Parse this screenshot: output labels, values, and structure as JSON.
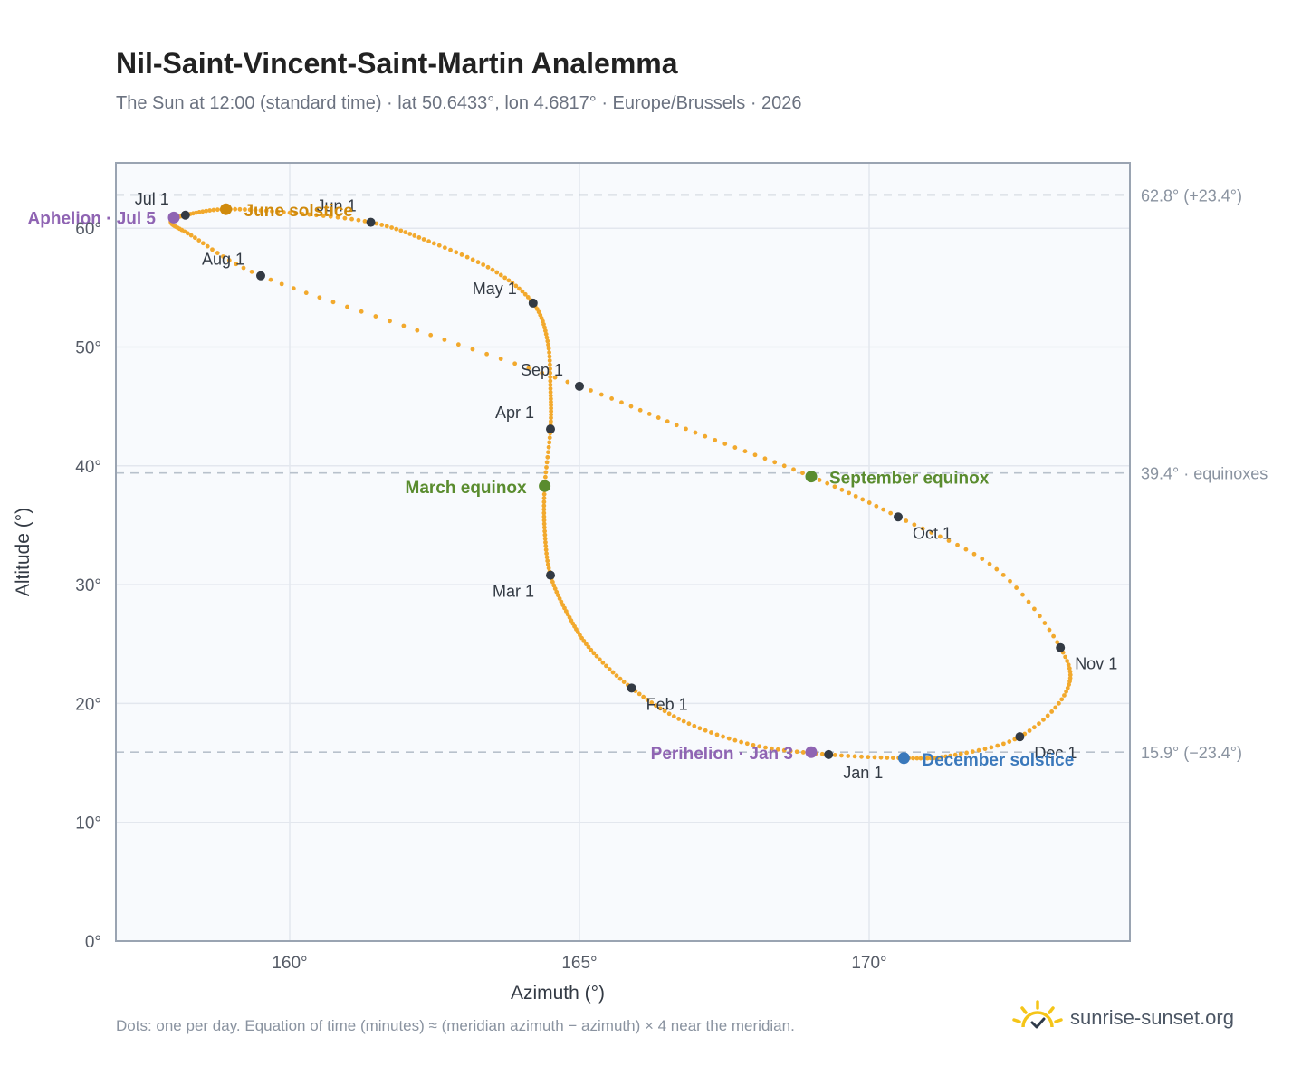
{
  "title": "Nil-Saint-Vincent-Saint-Martin Analemma",
  "subtitle": "The Sun at 12:00 (standard time) · lat 50.6433°, lon 4.6817° · Europe/Brussels · 2026",
  "footnote": "Dots: one per day. Equation of time (minutes) ≈ (meridian azimuth − azimuth) × 4 near the meridian.",
  "brand": "sunrise-sunset.org",
  "colors": {
    "curve": "#f2a92d",
    "month_marker": "#333a44",
    "solstice_june": "#d08a0c",
    "solstice_december": "#3a78bb",
    "equinox": "#5a8c2f",
    "apsis": "#8f64b3",
    "plot_bg": "#f8fafd",
    "grid": "#e3e7ee",
    "axis": "#9aa4b2",
    "ref_line": "#b8c1cc"
  },
  "chart_data": {
    "type": "scatter",
    "xlabel": "Azimuth (°)",
    "ylabel": "Altitude (°)",
    "xlim": [
      157,
      174.5
    ],
    "ylim": [
      0,
      65.5
    ],
    "x_ticks": [
      160,
      165,
      170
    ],
    "x_tick_labels": [
      "160°",
      "165°",
      "170°"
    ],
    "y_ticks": [
      0,
      10,
      20,
      30,
      40,
      50,
      60
    ],
    "y_tick_labels": [
      "0°",
      "10°",
      "20°",
      "30°",
      "40°",
      "50°",
      "60°"
    ],
    "grid": true,
    "reference_lines": [
      {
        "y": 62.8,
        "label": "62.8° (+23.4°)"
      },
      {
        "y": 39.4,
        "label": "39.4° · equinoxes"
      },
      {
        "y": 15.9,
        "label": "15.9° (−23.4°)"
      }
    ],
    "month_markers": [
      {
        "label": "Jan 1",
        "x": 169.3,
        "y": 15.7
      },
      {
        "label": "Feb 1",
        "x": 165.9,
        "y": 21.3
      },
      {
        "label": "Mar 1",
        "x": 164.5,
        "y": 30.8
      },
      {
        "label": "Apr 1",
        "x": 164.5,
        "y": 43.1
      },
      {
        "label": "May 1",
        "x": 164.2,
        "y": 53.7
      },
      {
        "label": "Jun 1",
        "x": 161.4,
        "y": 60.5
      },
      {
        "label": "Jul 1",
        "x": 158.2,
        "y": 61.1
      },
      {
        "label": "Aug 1",
        "x": 159.5,
        "y": 56.0
      },
      {
        "label": "Sep 1",
        "x": 165.0,
        "y": 46.7
      },
      {
        "label": "Oct 1",
        "x": 170.5,
        "y": 35.7
      },
      {
        "label": "Nov 1",
        "x": 173.3,
        "y": 24.7
      },
      {
        "label": "Dec 1",
        "x": 172.6,
        "y": 17.2
      }
    ],
    "events": [
      {
        "label": "June solstice",
        "x": 158.9,
        "y": 61.6,
        "kind": "solstice_june"
      },
      {
        "label": "December solstice",
        "x": 170.6,
        "y": 15.4,
        "kind": "solstice_december"
      },
      {
        "label": "March equinox",
        "x": 164.4,
        "y": 38.3,
        "kind": "equinox"
      },
      {
        "label": "September equinox",
        "x": 169.0,
        "y": 39.1,
        "kind": "equinox"
      },
      {
        "label": "Aphelion · Jul 5",
        "x": 158.0,
        "y": 60.9,
        "kind": "apsis"
      },
      {
        "label": "Perihelion · Jan 3",
        "x": 169.0,
        "y": 15.9,
        "kind": "apsis"
      }
    ],
    "path_control_points": [
      [
        169.3,
        15.7
      ],
      [
        168.0,
        16.5
      ],
      [
        166.8,
        18.5
      ],
      [
        165.9,
        21.3
      ],
      [
        165.2,
        24.5
      ],
      [
        164.8,
        27.5
      ],
      [
        164.5,
        30.8
      ],
      [
        164.4,
        34.5
      ],
      [
        164.4,
        38.3
      ],
      [
        164.5,
        43.1
      ],
      [
        164.5,
        46.5
      ],
      [
        164.45,
        50.5
      ],
      [
        164.2,
        53.7
      ],
      [
        163.5,
        56.5
      ],
      [
        162.4,
        58.9
      ],
      [
        161.4,
        60.5
      ],
      [
        160.0,
        61.3
      ],
      [
        158.9,
        61.6
      ],
      [
        158.2,
        61.1
      ],
      [
        157.95,
        60.5
      ],
      [
        158.3,
        59.4
      ],
      [
        159.5,
        56.0
      ],
      [
        162.2,
        51.4
      ],
      [
        165.0,
        46.7
      ],
      [
        167.0,
        42.8
      ],
      [
        169.0,
        39.1
      ],
      [
        170.5,
        35.7
      ],
      [
        172.2,
        31.3
      ],
      [
        173.3,
        24.7
      ],
      [
        173.4,
        21.0
      ],
      [
        172.6,
        17.2
      ],
      [
        171.4,
        15.6
      ],
      [
        170.6,
        15.4
      ],
      [
        169.3,
        15.7
      ]
    ]
  }
}
